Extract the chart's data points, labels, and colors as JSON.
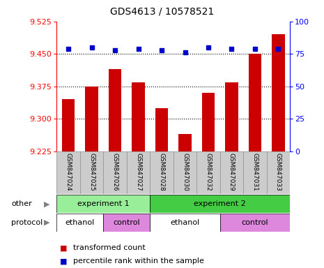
{
  "title": "GDS4613 / 10578521",
  "samples": [
    "GSM847024",
    "GSM847025",
    "GSM847026",
    "GSM847027",
    "GSM847028",
    "GSM847030",
    "GSM847032",
    "GSM847029",
    "GSM847031",
    "GSM847033"
  ],
  "red_values": [
    9.345,
    9.375,
    9.415,
    9.385,
    9.325,
    9.265,
    9.36,
    9.385,
    9.45,
    9.495
  ],
  "blue_values": [
    79,
    80,
    78,
    79,
    78,
    76,
    80,
    79,
    79,
    79
  ],
  "ylim_left": [
    9.225,
    9.525
  ],
  "ylim_right": [
    0,
    100
  ],
  "yticks_left": [
    9.225,
    9.3,
    9.375,
    9.45,
    9.525
  ],
  "yticks_right": [
    0,
    25,
    50,
    75,
    100
  ],
  "hlines": [
    9.45,
    9.375,
    9.3
  ],
  "bar_color": "#cc0000",
  "dot_color": "#0000cc",
  "bar_bottom": 9.225,
  "other_row": [
    {
      "label": "experiment 1",
      "start": 0,
      "end": 4,
      "color": "#99ee99"
    },
    {
      "label": "experiment 2",
      "start": 4,
      "end": 10,
      "color": "#44cc44"
    }
  ],
  "protocol_row": [
    {
      "label": "ethanol",
      "start": 0,
      "end": 2,
      "color": "#ffffff"
    },
    {
      "label": "control",
      "start": 2,
      "end": 4,
      "color": "#dd88dd"
    },
    {
      "label": "ethanol",
      "start": 4,
      "end": 7,
      "color": "#ffffff"
    },
    {
      "label": "control",
      "start": 7,
      "end": 10,
      "color": "#dd88dd"
    }
  ],
  "legend_red": "transformed count",
  "legend_blue": "percentile rank within the sample",
  "other_label": "other",
  "protocol_label": "protocol",
  "label_bg_color": "#cccccc",
  "label_edge_color": "#888888"
}
